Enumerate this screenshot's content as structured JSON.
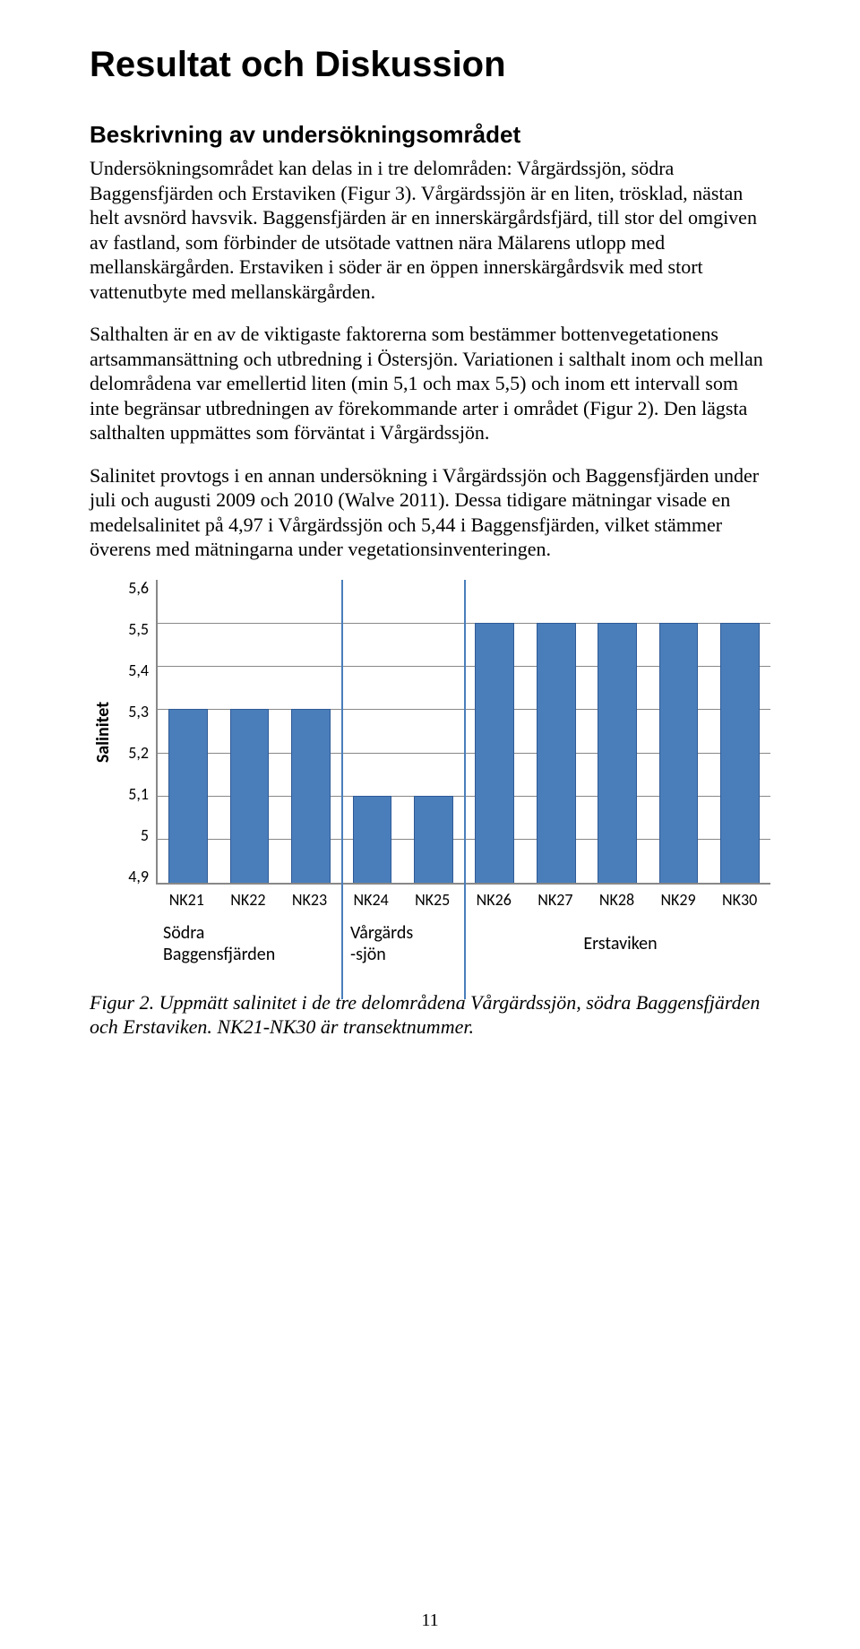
{
  "title": "Resultat och Diskussion",
  "subtitle": "Beskrivning av undersökningsområdet",
  "paragraphs": {
    "p1": "Undersökningsområdet kan delas in i tre delområden: Vårgärdssjön, södra Baggensfjärden och Erstaviken (Figur 3). Vårgärdssjön är en liten, trösklad, nästan helt avsnörd havsvik. Baggensfjärden är en innerskärgårdsfjärd, till stor del omgiven av fastland, som förbinder de utsötade vattnen nära Mälarens utlopp med mellanskärgården. Erstaviken i söder är en öppen innerskärgårdsvik med stort vattenutbyte med mellanskärgården.",
    "p2": "Salthalten är en av de viktigaste faktorerna som bestämmer bottenvegetationens artsammansättning och utbredning i Östersjön. Variationen i salthalt inom och mellan delområdena var emellertid liten (min 5,1 och max 5,5) och inom ett intervall som inte begränsar utbredningen av förekommande arter i området (Figur 2). Den lägsta salthalten uppmättes som förväntat i Vårgärdssjön.",
    "p3": "Salinitet provtogs i en annan undersökning i Vårgärdssjön och Baggensfjärden under juli och augusti 2009 och 2010 (Walve 2011). Dessa tidigare mätningar visade en medelsalinitet på 4,97 i Vårgärdssjön och 5,44 i Baggensfjärden, vilket stämmer överens med mätningarna under vegetationsinventeringen."
  },
  "caption": "Figur 2. Uppmätt salinitet i de tre delområdena Vårgärdssjön, södra Baggensfjärden och Erstaviken. NK21-NK30 är transektnummer.",
  "page_number": "11",
  "chart": {
    "type": "bar",
    "ylabel": "Salinitet",
    "ylim": [
      4.9,
      5.6
    ],
    "ytick_step": 0.1,
    "yticks": [
      "5,6",
      "5,5",
      "5,4",
      "5,3",
      "5,2",
      "5,1",
      "5",
      "4,9"
    ],
    "categories": [
      "NK21",
      "NK22",
      "NK23",
      "NK24",
      "NK25",
      "NK26",
      "NK27",
      "NK28",
      "NK29",
      "NK30"
    ],
    "values": [
      5.3,
      5.3,
      5.3,
      5.1,
      5.1,
      5.5,
      5.5,
      5.5,
      5.5,
      5.5
    ],
    "bar_color": "#4a7ebb",
    "bar_border_color": "#2e5a96",
    "background_color": "#ffffff",
    "grid_color": "#888888",
    "separator_color": "#4a7ebb",
    "separators_after_index": [
      2,
      4
    ],
    "bar_width": 0.64,
    "label_fontsize": 18,
    "ylabel_fontsize": 20,
    "ylabel_fontweight": "bold",
    "font_family": "Calibri",
    "groups": {
      "g1": "Södra\nBaggensfjärden",
      "g2": "Vårgärds\n-sjön",
      "g3": "Erstaviken"
    }
  }
}
